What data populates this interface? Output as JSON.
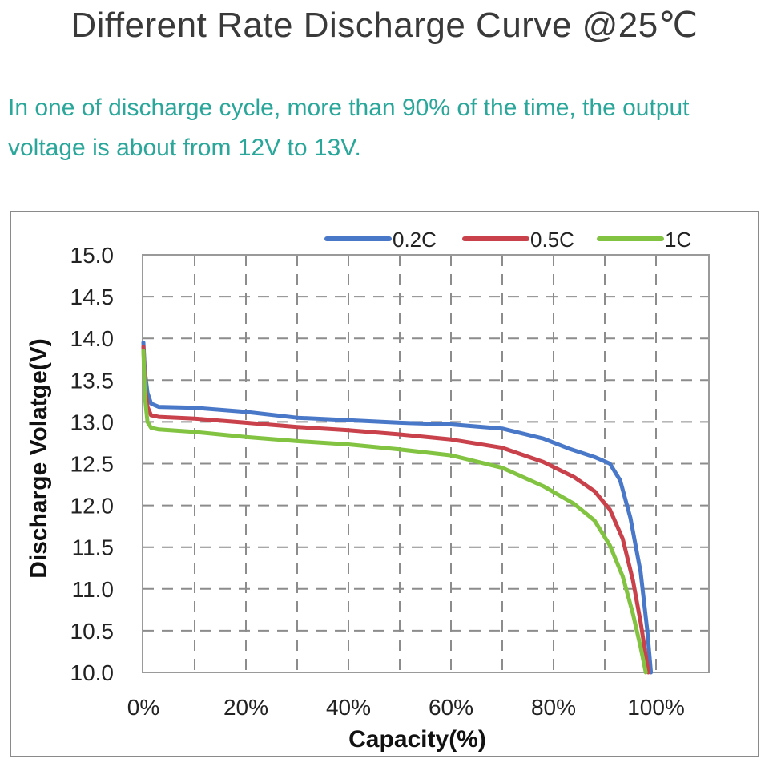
{
  "header": {
    "title": "Different Rate Discharge Curve @25℃",
    "subtitle_line1": "In one of discharge cycle, more than 90% of the time, the output",
    "subtitle_line2": "voltage is about from 12V to 13V."
  },
  "chart_data": {
    "type": "line",
    "xlabel": "Capacity(%)",
    "ylabel": "Discharge Volatge(V)",
    "xlim": [
      0,
      100
    ],
    "ylim": [
      10.0,
      15.0
    ],
    "x_ticks": [
      0,
      20,
      40,
      60,
      80,
      100
    ],
    "x_tick_labels": [
      "0%",
      "20%",
      "40%",
      "60%",
      "80%",
      "100%"
    ],
    "y_ticks": [
      10.0,
      10.5,
      11.0,
      11.5,
      12.0,
      12.5,
      13.0,
      13.5,
      14.0,
      14.5,
      15.0
    ],
    "y_tick_labels": [
      "10.0",
      "10.5",
      "11.0",
      "11.5",
      "12.0",
      "12.5",
      "13.0",
      "13.5",
      "14.0",
      "14.5",
      "15.0"
    ],
    "grid": true,
    "legend_position": "top-right",
    "series": [
      {
        "name": "0.2C",
        "color": "#4a78c8",
        "points": [
          [
            0,
            13.95
          ],
          [
            0.3,
            13.6
          ],
          [
            0.8,
            13.35
          ],
          [
            1.5,
            13.22
          ],
          [
            3,
            13.18
          ],
          [
            10,
            13.17
          ],
          [
            20,
            13.12
          ],
          [
            30,
            13.05
          ],
          [
            40,
            13.02
          ],
          [
            50,
            12.99
          ],
          [
            60,
            12.97
          ],
          [
            70,
            12.92
          ],
          [
            78,
            12.8
          ],
          [
            83,
            12.68
          ],
          [
            88,
            12.58
          ],
          [
            91,
            12.5
          ],
          [
            93,
            12.3
          ],
          [
            95,
            11.85
          ],
          [
            97,
            11.2
          ],
          [
            98.3,
            10.5
          ],
          [
            99,
            10.0
          ]
        ]
      },
      {
        "name": "0.5C",
        "color": "#c8414b",
        "points": [
          [
            0,
            13.9
          ],
          [
            0.3,
            13.45
          ],
          [
            0.8,
            13.18
          ],
          [
            1.5,
            13.08
          ],
          [
            3,
            13.06
          ],
          [
            10,
            13.04
          ],
          [
            20,
            12.99
          ],
          [
            30,
            12.94
          ],
          [
            40,
            12.9
          ],
          [
            50,
            12.85
          ],
          [
            60,
            12.79
          ],
          [
            70,
            12.69
          ],
          [
            78,
            12.52
          ],
          [
            84,
            12.34
          ],
          [
            88,
            12.17
          ],
          [
            91,
            11.95
          ],
          [
            93.5,
            11.6
          ],
          [
            95.5,
            11.1
          ],
          [
            97,
            10.6
          ],
          [
            98.5,
            10.0
          ]
        ]
      },
      {
        "name": "1C",
        "color": "#82c341",
        "points": [
          [
            0,
            13.85
          ],
          [
            0.3,
            13.3
          ],
          [
            0.8,
            13.0
          ],
          [
            1.5,
            12.93
          ],
          [
            3,
            12.91
          ],
          [
            10,
            12.88
          ],
          [
            20,
            12.82
          ],
          [
            30,
            12.77
          ],
          [
            40,
            12.73
          ],
          [
            50,
            12.67
          ],
          [
            60,
            12.6
          ],
          [
            70,
            12.45
          ],
          [
            78,
            12.23
          ],
          [
            84,
            12.02
          ],
          [
            88,
            11.82
          ],
          [
            91,
            11.52
          ],
          [
            93.5,
            11.15
          ],
          [
            95.5,
            10.7
          ],
          [
            97,
            10.3
          ],
          [
            98,
            10.0
          ]
        ]
      }
    ]
  }
}
